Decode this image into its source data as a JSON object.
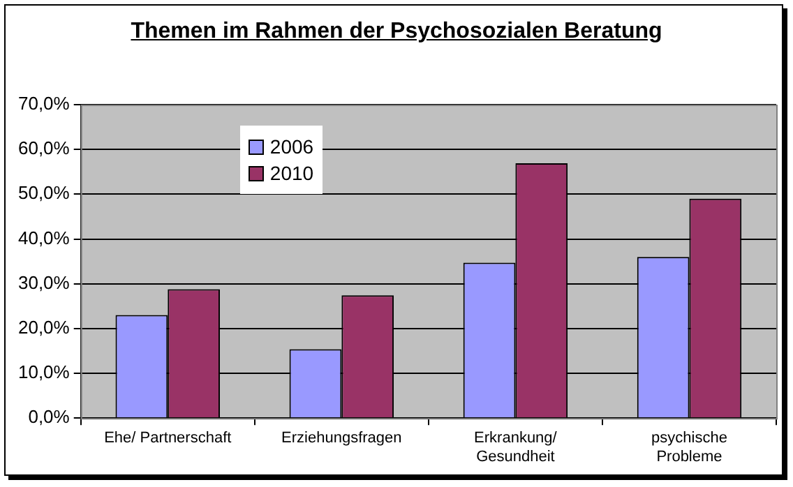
{
  "chart_data": {
    "type": "bar",
    "title": "Themen im Rahmen der Psychosozialen Beratung",
    "categories": [
      "Ehe/ Partnerschaft",
      "Erziehungsfragen",
      "Erkrankung/\nGesundheit",
      "psychische\nProbleme"
    ],
    "series": [
      {
        "name": "2006",
        "color": "#9999ff",
        "values": [
          23,
          15.4,
          34.7,
          36
        ]
      },
      {
        "name": "2010",
        "color": "#993366",
        "values": [
          28.8,
          27.4,
          56.9,
          49
        ]
      }
    ],
    "ylim": [
      0,
      70
    ],
    "yticks": [
      {
        "value": 0,
        "label": "0,0%"
      },
      {
        "value": 10,
        "label": "10,0%"
      },
      {
        "value": 20,
        "label": "20,0%"
      },
      {
        "value": 30,
        "label": "30,0%"
      },
      {
        "value": 40,
        "label": "40,0%"
      },
      {
        "value": 50,
        "label": "50,0%"
      },
      {
        "value": 60,
        "label": "60,0%"
      },
      {
        "value": 70,
        "label": "70,0%"
      }
    ],
    "grid": "y",
    "legend": "top left"
  }
}
